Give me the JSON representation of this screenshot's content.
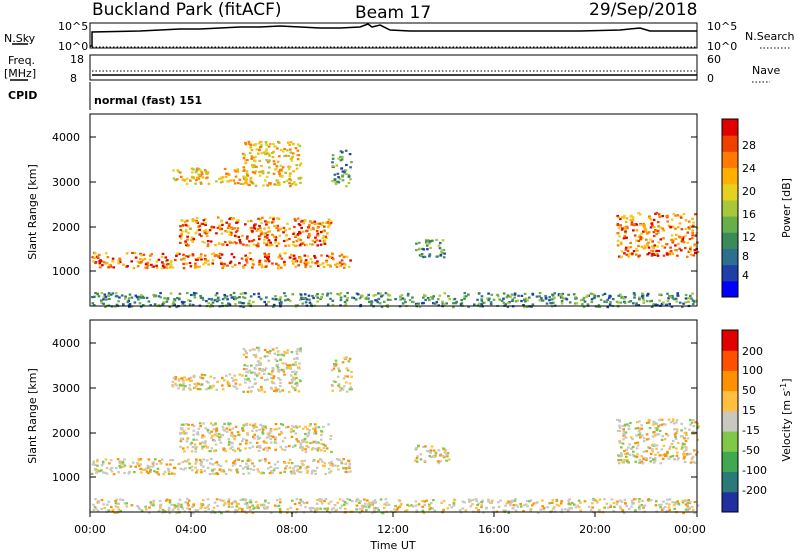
{
  "header": {
    "station": "Buckland Park (fitACF)",
    "beam": "Beam 17",
    "date": "29/Sep/2018"
  },
  "strips": {
    "nsky_label": "N.Sky",
    "nsky_ticks": [
      "10^5",
      "10^0"
    ],
    "nsearch_label": "N.Search",
    "nsearch_ticks": [
      "10^5",
      "10^0"
    ],
    "freq_label": "Freq.",
    "freq_unit": "[MHz]",
    "freq_ticks": [
      "18",
      "8"
    ],
    "nave_label": "Nave",
    "nave_ticks": [
      "60",
      "0"
    ],
    "cpid_label": "CPID",
    "cpid_value": "normal (fast) 151"
  },
  "axes": {
    "xlabel": "Time UT",
    "x_ticks": [
      "00:00",
      "04:00",
      "08:00",
      "12:00",
      "16:00",
      "20:00",
      "00:00"
    ],
    "ylabel": "Slant Range [km]",
    "y_ticks": [
      "1000",
      "2000",
      "3000",
      "4000"
    ]
  },
  "colorbars": {
    "power": {
      "label": "Power [dB]",
      "ticks": [
        "28",
        "24",
        "20",
        "16",
        "12",
        "8",
        "4"
      ],
      "colors": [
        "#0000ff",
        "#1e3fa8",
        "#2e6e8e",
        "#3a8a5a",
        "#66b04a",
        "#a8c83a",
        "#e8d020",
        "#ffb000",
        "#ff7a00",
        "#f04000",
        "#e00000"
      ]
    },
    "velocity": {
      "label": "Velocity [m s",
      "label_sup": "-1",
      "label_end": "]",
      "ticks": [
        "200",
        "100",
        "50",
        "15",
        "-15",
        "-50",
        "-100",
        "-200"
      ],
      "colors": [
        "#e00000",
        "#ff5000",
        "#ff9000",
        "#ffc040",
        "#c8c8c0",
        "#80c848",
        "#40a850",
        "#2a7a7a",
        "#2030a0"
      ]
    }
  },
  "colors": {
    "frame": "#000000",
    "background": "#ffffff"
  },
  "chart_data": [
    {
      "type": "heatmap",
      "title": "Power",
      "xlabel": "Time UT",
      "ylabel": "Slant Range [km]",
      "xlim": [
        0,
        24
      ],
      "ylim": [
        180,
        4500
      ],
      "regions": [
        {
          "t": [
            0.0,
            10.3
          ],
          "r": [
            1050,
            1400
          ],
          "level": "strong"
        },
        {
          "t": [
            3.2,
            6.2
          ],
          "r": [
            2950,
            3300
          ],
          "level": "moderate"
        },
        {
          "t": [
            3.5,
            9.5
          ],
          "r": [
            1550,
            2200
          ],
          "level": "strong"
        },
        {
          "t": [
            6.0,
            8.3
          ],
          "r": [
            2900,
            3900
          ],
          "level": "moderate"
        },
        {
          "t": [
            9.5,
            10.3
          ],
          "r": [
            2900,
            3700
          ],
          "level": "weak"
        },
        {
          "t": [
            12.8,
            14.2
          ],
          "r": [
            1300,
            1700
          ],
          "level": "weak"
        },
        {
          "t": [
            20.8,
            24.0
          ],
          "r": [
            1300,
            2300
          ],
          "level": "strong"
        },
        {
          "t": [
            0.0,
            24.0
          ],
          "r": [
            180,
            500
          ],
          "level": "weak"
        }
      ]
    },
    {
      "type": "heatmap",
      "title": "Velocity",
      "xlabel": "Time UT",
      "ylabel": "Slant Range [km]",
      "xlim": [
        0,
        24
      ],
      "ylim": [
        180,
        4500
      ],
      "regions": [
        {
          "t": [
            0.0,
            10.3
          ],
          "r": [
            1050,
            1400
          ],
          "level": "low"
        },
        {
          "t": [
            3.2,
            6.2
          ],
          "r": [
            2950,
            3300
          ],
          "level": "low"
        },
        {
          "t": [
            3.5,
            9.5
          ],
          "r": [
            1550,
            2200
          ],
          "level": "low"
        },
        {
          "t": [
            6.0,
            8.3
          ],
          "r": [
            2900,
            3900
          ],
          "level": "low"
        },
        {
          "t": [
            9.5,
            10.3
          ],
          "r": [
            2900,
            3700
          ],
          "level": "low"
        },
        {
          "t": [
            12.8,
            14.2
          ],
          "r": [
            1300,
            1700
          ],
          "level": "low"
        },
        {
          "t": [
            20.8,
            24.0
          ],
          "r": [
            1300,
            2300
          ],
          "level": "low"
        },
        {
          "t": [
            0.0,
            24.0
          ],
          "r": [
            180,
            500
          ],
          "level": "low"
        }
      ]
    }
  ]
}
